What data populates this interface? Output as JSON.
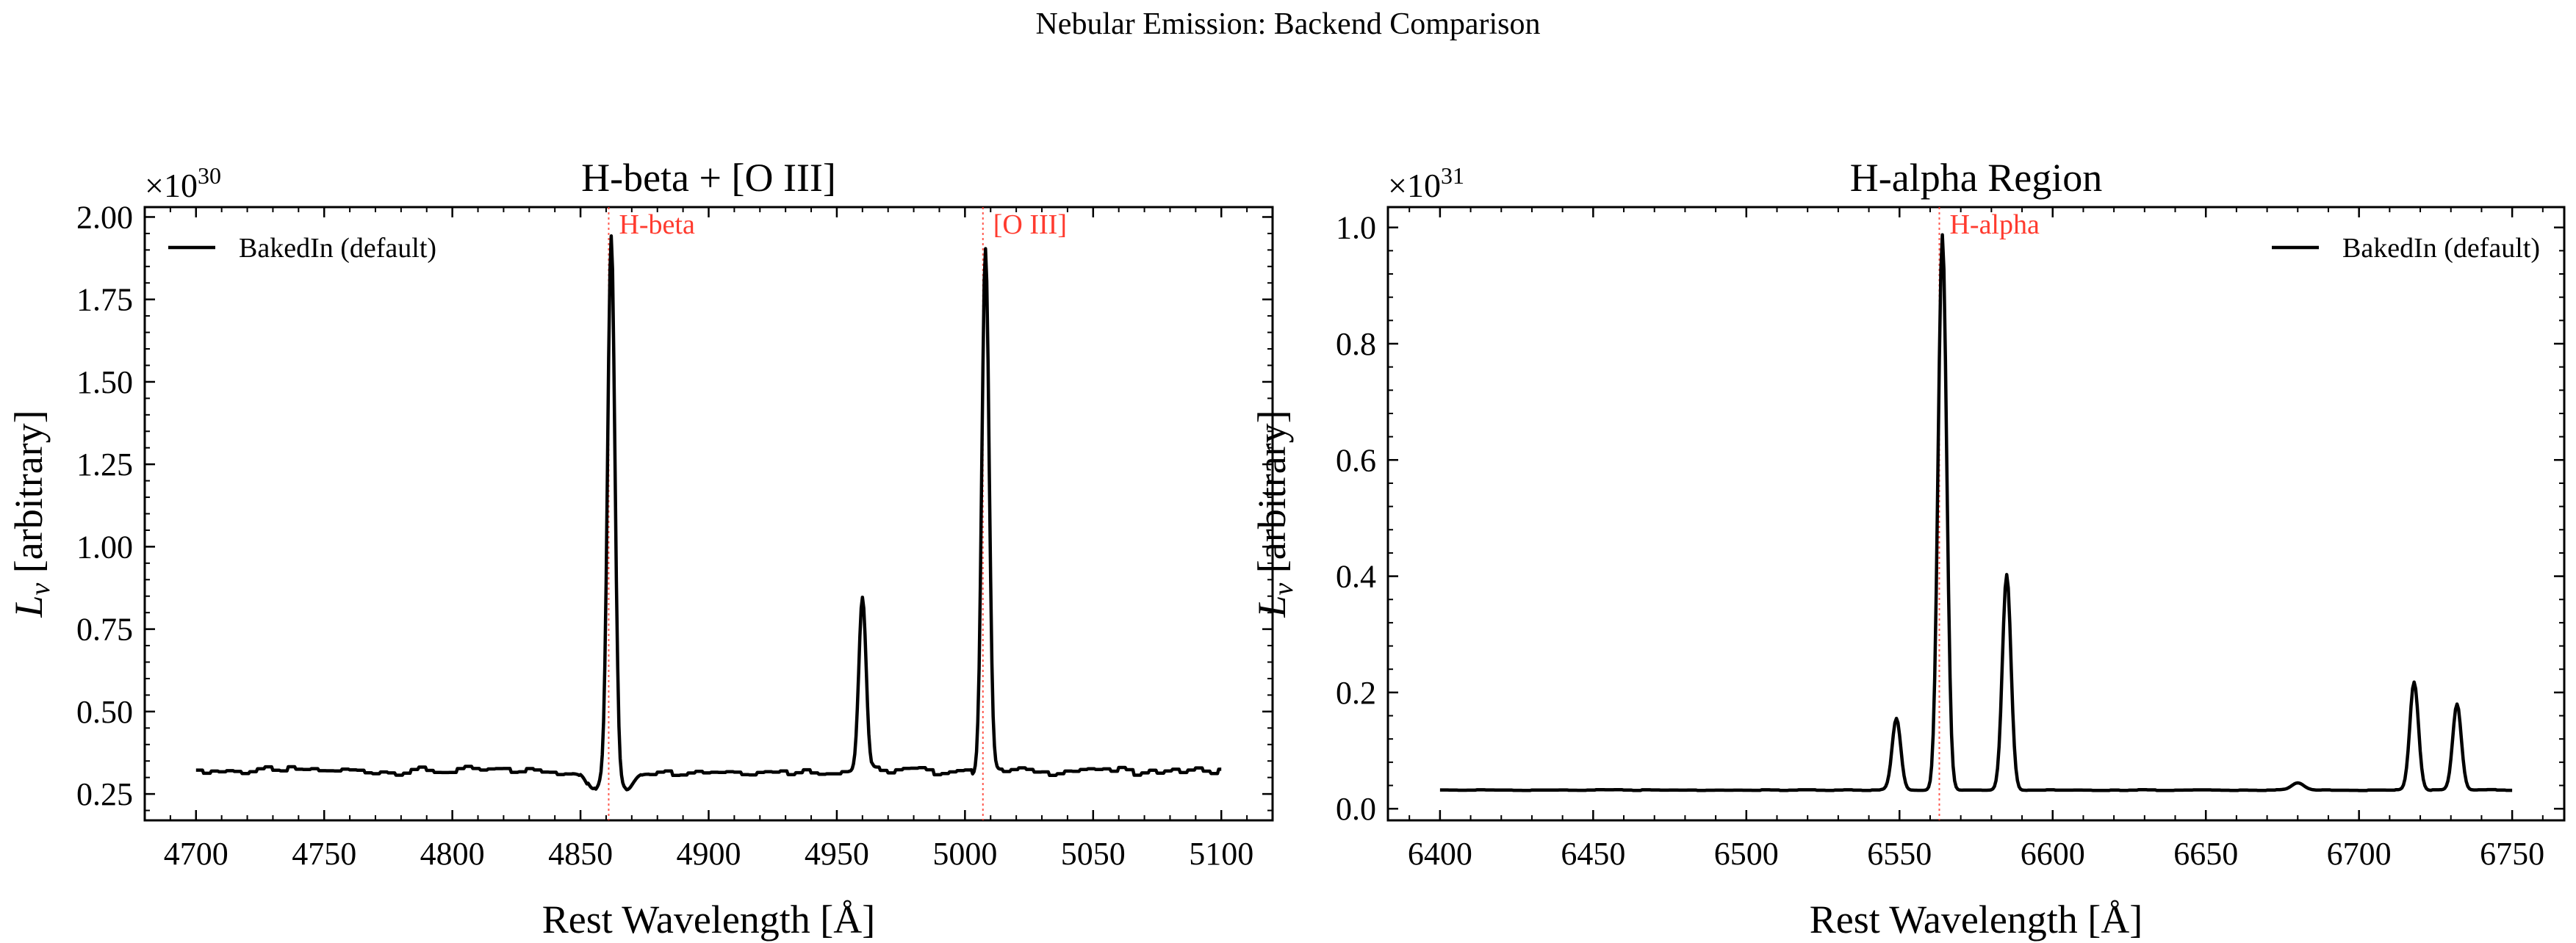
{
  "suptitle": "Nebular Emission: Backend Comparison",
  "colors": {
    "spectrum": "#000000",
    "marker": "#ff3b2f"
  },
  "chart_data": [
    {
      "type": "line",
      "title": "H-beta + [O III]",
      "xlabel": "Rest Wavelength [Å]",
      "ylabel_main": "L",
      "ylabel_sub": "ν",
      "ylabel_rest": " [arbitrary]",
      "offset_base": "×10",
      "offset_exp": "30",
      "xlim": [
        4680,
        5120
      ],
      "ylim": [
        0.17,
        2.03
      ],
      "xticks": [
        4700,
        4750,
        4800,
        4850,
        4900,
        4950,
        5000,
        5050,
        5100
      ],
      "xtick_labels": [
        "4700",
        "4750",
        "4800",
        "4850",
        "4900",
        "4950",
        "5000",
        "5050",
        "5100"
      ],
      "yticks": [
        0.25,
        0.5,
        0.75,
        1.0,
        1.25,
        1.5,
        1.75,
        2.0
      ],
      "ytick_labels": [
        "0.25",
        "0.50",
        "0.75",
        "1.00",
        "1.25",
        "1.50",
        "1.75",
        "2.00"
      ],
      "legend": {
        "position": "top-left",
        "label": "BakedIn (default)"
      },
      "lines": [
        {
          "name": "H-beta",
          "x": 4861
        },
        {
          "name": "[O III]",
          "x": 5007
        }
      ],
      "series": [
        {
          "name": "BakedIn (default)",
          "continuum": 0.32,
          "x_range": [
            4700,
            5100
          ],
          "peaks": [
            {
              "center": 4862,
              "amplitude": 1.62,
              "sigma": 1.4
            },
            {
              "center": 4960,
              "amplitude": 0.53,
              "sigma": 1.4
            },
            {
              "center": 5008,
              "amplitude": 1.59,
              "sigma": 1.4
            }
          ],
          "dips": [
            {
              "center": 4855,
              "amplitude": -0.06,
              "sigma": 2.5
            },
            {
              "center": 4868,
              "amplitude": -0.05,
              "sigma": 2.5
            }
          ]
        }
      ]
    },
    {
      "type": "line",
      "title": "H-alpha Region",
      "xlabel": "Rest Wavelength [Å]",
      "ylabel_main": "L",
      "ylabel_sub": "ν",
      "ylabel_rest": " [arbitrary]",
      "offset_base": "×10",
      "offset_exp": "31",
      "xlim": [
        6383,
        6767
      ],
      "ylim": [
        -0.02,
        1.035
      ],
      "xticks": [
        6400,
        6450,
        6500,
        6550,
        6600,
        6650,
        6700,
        6750
      ],
      "xtick_labels": [
        "6400",
        "6450",
        "6500",
        "6550",
        "6600",
        "6650",
        "6700",
        "6750"
      ],
      "yticks": [
        0.0,
        0.2,
        0.4,
        0.6,
        0.8,
        1.0
      ],
      "ytick_labels": [
        "0.0",
        "0.2",
        "0.4",
        "0.6",
        "0.8",
        "1.0"
      ],
      "legend": {
        "position": "top-right",
        "label": "BakedIn (default)"
      },
      "lines": [
        {
          "name": "H-alpha",
          "x": 6563
        }
      ],
      "series": [
        {
          "name": "BakedIn (default)",
          "continuum": 0.032,
          "x_range": [
            6400,
            6750
          ],
          "peaks": [
            {
              "center": 6549,
              "amplitude": 0.123,
              "sigma": 1.4
            },
            {
              "center": 6564,
              "amplitude": 0.955,
              "sigma": 1.4
            },
            {
              "center": 6585,
              "amplitude": 0.37,
              "sigma": 1.4
            },
            {
              "center": 6680,
              "amplitude": 0.012,
              "sigma": 2.0
            },
            {
              "center": 6718,
              "amplitude": 0.186,
              "sigma": 1.4
            },
            {
              "center": 6732,
              "amplitude": 0.148,
              "sigma": 1.4
            }
          ],
          "dips": []
        }
      ]
    }
  ]
}
